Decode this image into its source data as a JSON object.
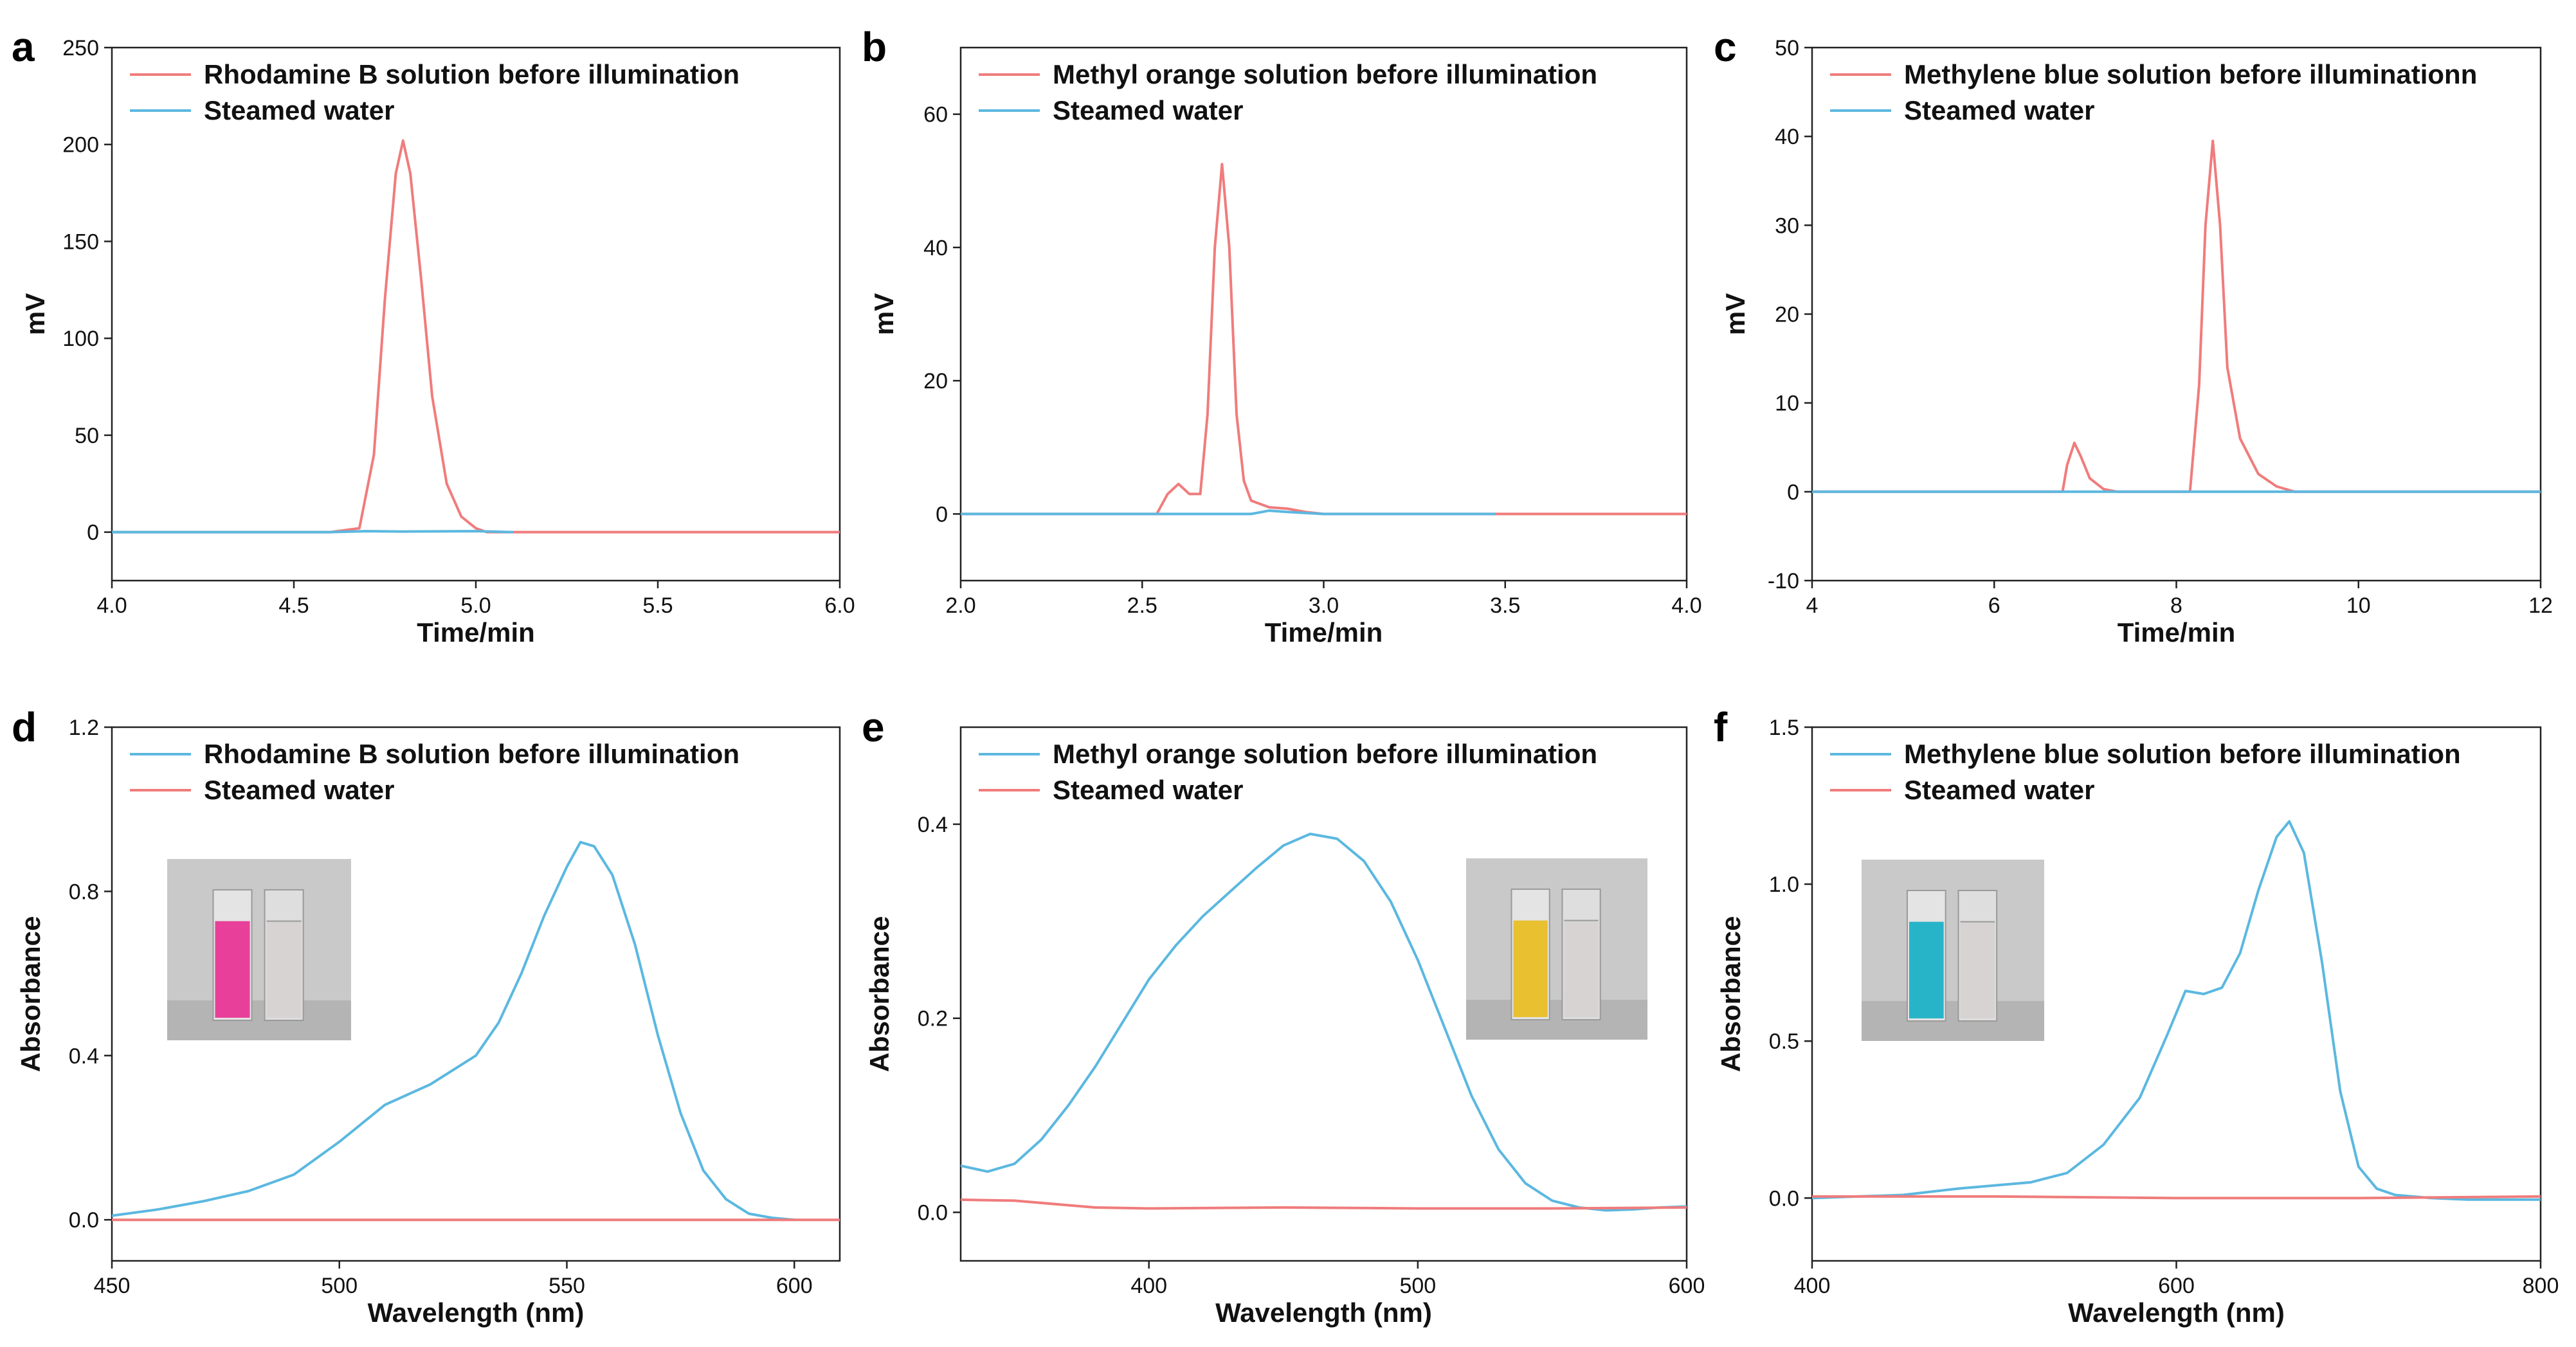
{
  "chart_data": [
    {
      "panel": "a",
      "type": "line",
      "xlabel": "Time/min",
      "ylabel": "mV",
      "xlim": [
        4.0,
        6.0
      ],
      "ylim": [
        -25,
        250
      ],
      "xticks": [
        "4.0",
        "4.5",
        "5.0",
        "5.5",
        "6.0"
      ],
      "yticks": [
        "0",
        "50",
        "100",
        "150",
        "200",
        "250"
      ],
      "series": [
        {
          "name": "Rhodamine B solution before illumination",
          "color": "#f07c7c",
          "x": [
            4.0,
            4.6,
            4.68,
            4.72,
            4.75,
            4.78,
            4.8,
            4.82,
            4.85,
            4.88,
            4.92,
            4.96,
            5.0,
            5.03,
            5.2,
            6.0
          ],
          "y": [
            0,
            0,
            2,
            40,
            120,
            185,
            202,
            185,
            130,
            70,
            25,
            8,
            2,
            0,
            0,
            0
          ]
        },
        {
          "name": "Steamed water",
          "color": "#5bb8e0",
          "x": [
            4.0,
            4.6,
            4.7,
            4.8,
            5.0,
            5.1
          ],
          "y": [
            0,
            0,
            0.5,
            0.3,
            0.5,
            0
          ]
        }
      ]
    },
    {
      "panel": "b",
      "type": "line",
      "xlabel": "Time/min",
      "ylabel": "mV",
      "xlim": [
        2.0,
        4.0
      ],
      "ylim": [
        -10,
        70
      ],
      "xticks": [
        "2.0",
        "2.5",
        "3.0",
        "3.5",
        "4.0"
      ],
      "yticks": [
        "0",
        "20",
        "40",
        "60"
      ],
      "series": [
        {
          "name": "Methyl orange solution before illumination",
          "color": "#f07c7c",
          "x": [
            2.0,
            2.54,
            2.57,
            2.6,
            2.63,
            2.66,
            2.68,
            2.7,
            2.72,
            2.74,
            2.76,
            2.78,
            2.8,
            2.85,
            2.9,
            2.95,
            3.0,
            4.0
          ],
          "y": [
            0,
            0,
            3,
            4.5,
            3,
            3,
            15,
            40,
            52.5,
            40,
            15,
            5,
            2,
            1,
            0.8,
            0.3,
            0,
            0
          ]
        },
        {
          "name": "Steamed water",
          "color": "#5bb8e0",
          "x": [
            2.0,
            2.8,
            2.85,
            2.9,
            3.0,
            3.47
          ],
          "y": [
            0,
            0,
            0.5,
            0.3,
            0,
            0
          ]
        }
      ]
    },
    {
      "panel": "c",
      "type": "line",
      "xlabel": "Time/min",
      "ylabel": "mV",
      "xlim": [
        4,
        12
      ],
      "ylim": [
        -10,
        50
      ],
      "xticks": [
        "4",
        "6",
        "8",
        "10",
        "12"
      ],
      "yticks": [
        "-10",
        "0",
        "10",
        "20",
        "30",
        "40",
        "50"
      ],
      "series": [
        {
          "name": "Methylene blue solution before illuminationn",
          "color": "#f07c7c",
          "x": [
            4,
            6.75,
            6.8,
            6.88,
            6.95,
            7.05,
            7.2,
            7.35,
            8.15,
            8.25,
            8.32,
            8.4,
            8.48,
            8.56,
            8.7,
            8.9,
            9.1,
            9.3,
            12
          ],
          "y": [
            0,
            0,
            3,
            5.5,
            4,
            1.5,
            0.3,
            0,
            0,
            12,
            30,
            39.5,
            30,
            14,
            6,
            2,
            0.6,
            0,
            0
          ]
        },
        {
          "name": "Steamed water",
          "color": "#5bb8e0",
          "x": [
            4,
            12
          ],
          "y": [
            0,
            0
          ]
        }
      ]
    },
    {
      "panel": "d",
      "type": "line",
      "xlabel": "Wavelength (nm)",
      "ylabel": "Absorbance",
      "xlim": [
        450,
        610
      ],
      "ylim": [
        -0.1,
        1.2
      ],
      "xticks": [
        "450",
        "500",
        "550",
        "600"
      ],
      "yticks": [
        "0.0",
        "0.4",
        "0.8",
        "1.2"
      ],
      "series": [
        {
          "name": "Rhodamine B solution before illumination",
          "color": "#5bb8e0",
          "x": [
            450,
            460,
            470,
            480,
            490,
            500,
            510,
            520,
            530,
            535,
            540,
            545,
            550,
            553,
            556,
            560,
            565,
            570,
            575,
            580,
            585,
            590,
            595,
            600
          ],
          "y": [
            0.01,
            0.025,
            0.045,
            0.07,
            0.11,
            0.19,
            0.28,
            0.33,
            0.4,
            0.48,
            0.6,
            0.74,
            0.86,
            0.92,
            0.91,
            0.84,
            0.67,
            0.45,
            0.26,
            0.12,
            0.05,
            0.015,
            0.005,
            0.0
          ]
        },
        {
          "name": "Steamed water",
          "color": "#f07c7c",
          "x": [
            450,
            610
          ],
          "y": [
            0,
            0
          ]
        }
      ]
    },
    {
      "panel": "e",
      "type": "line",
      "xlabel": "Wavelength (nm)",
      "ylabel": "Absorbance",
      "xlim": [
        330,
        600
      ],
      "ylim": [
        -0.05,
        0.5
      ],
      "xticks": [
        "400",
        "500",
        "600"
      ],
      "yticks": [
        "0.0",
        "0.2",
        "0.4"
      ],
      "series": [
        {
          "name": "Methyl orange solution before illumination",
          "color": "#5bb8e0",
          "x": [
            330,
            340,
            350,
            360,
            370,
            380,
            390,
            400,
            410,
            420,
            430,
            440,
            450,
            460,
            470,
            480,
            490,
            500,
            510,
            520,
            530,
            540,
            550,
            560,
            570,
            580,
            590,
            600
          ],
          "y": [
            0.048,
            0.042,
            0.05,
            0.075,
            0.11,
            0.15,
            0.195,
            0.24,
            0.275,
            0.305,
            0.33,
            0.355,
            0.378,
            0.39,
            0.385,
            0.362,
            0.32,
            0.26,
            0.19,
            0.12,
            0.065,
            0.03,
            0.012,
            0.005,
            0.002,
            0.003,
            0.005,
            0.006
          ]
        },
        {
          "name": "Steamed water",
          "color": "#f07c7c",
          "x": [
            330,
            350,
            380,
            400,
            450,
            500,
            550,
            600
          ],
          "y": [
            0.013,
            0.012,
            0.005,
            0.004,
            0.005,
            0.004,
            0.004,
            0.005
          ]
        }
      ]
    },
    {
      "panel": "f",
      "type": "line",
      "xlabel": "Wavelength (nm)",
      "ylabel": "Absorbance",
      "xlim": [
        400,
        800
      ],
      "ylim": [
        -0.2,
        1.5
      ],
      "xticks": [
        "400",
        "600",
        "800"
      ],
      "yticks": [
        "0.0",
        "0.5",
        "1.0",
        "1.5"
      ],
      "series": [
        {
          "name": "Methylene blue solution before illumination",
          "color": "#5bb8e0",
          "x": [
            400,
            450,
            480,
            500,
            520,
            540,
            560,
            580,
            595,
            605,
            615,
            625,
            635,
            645,
            655,
            662,
            670,
            680,
            690,
            700,
            710,
            720,
            740,
            760,
            800
          ],
          "y": [
            0.0,
            0.01,
            0.03,
            0.04,
            0.05,
            0.08,
            0.17,
            0.32,
            0.52,
            0.66,
            0.65,
            0.67,
            0.78,
            0.98,
            1.15,
            1.2,
            1.1,
            0.75,
            0.34,
            0.1,
            0.03,
            0.01,
            0.0,
            -0.005,
            -0.005
          ]
        },
        {
          "name": "Steamed water",
          "color": "#f07c7c",
          "x": [
            400,
            500,
            600,
            700,
            800
          ],
          "y": [
            0.005,
            0.005,
            0.0,
            0.0,
            0.005
          ]
        }
      ]
    }
  ],
  "insets": [
    {
      "panel": "d",
      "color": "#e8409a",
      "description": "Rhodamine B cuvette photo"
    },
    {
      "panel": "e",
      "color": "#e8c030",
      "description": "Methyl orange cuvette photo"
    },
    {
      "panel": "f",
      "color": "#28b4c8",
      "description": "Methylene blue cuvette photo"
    }
  ]
}
